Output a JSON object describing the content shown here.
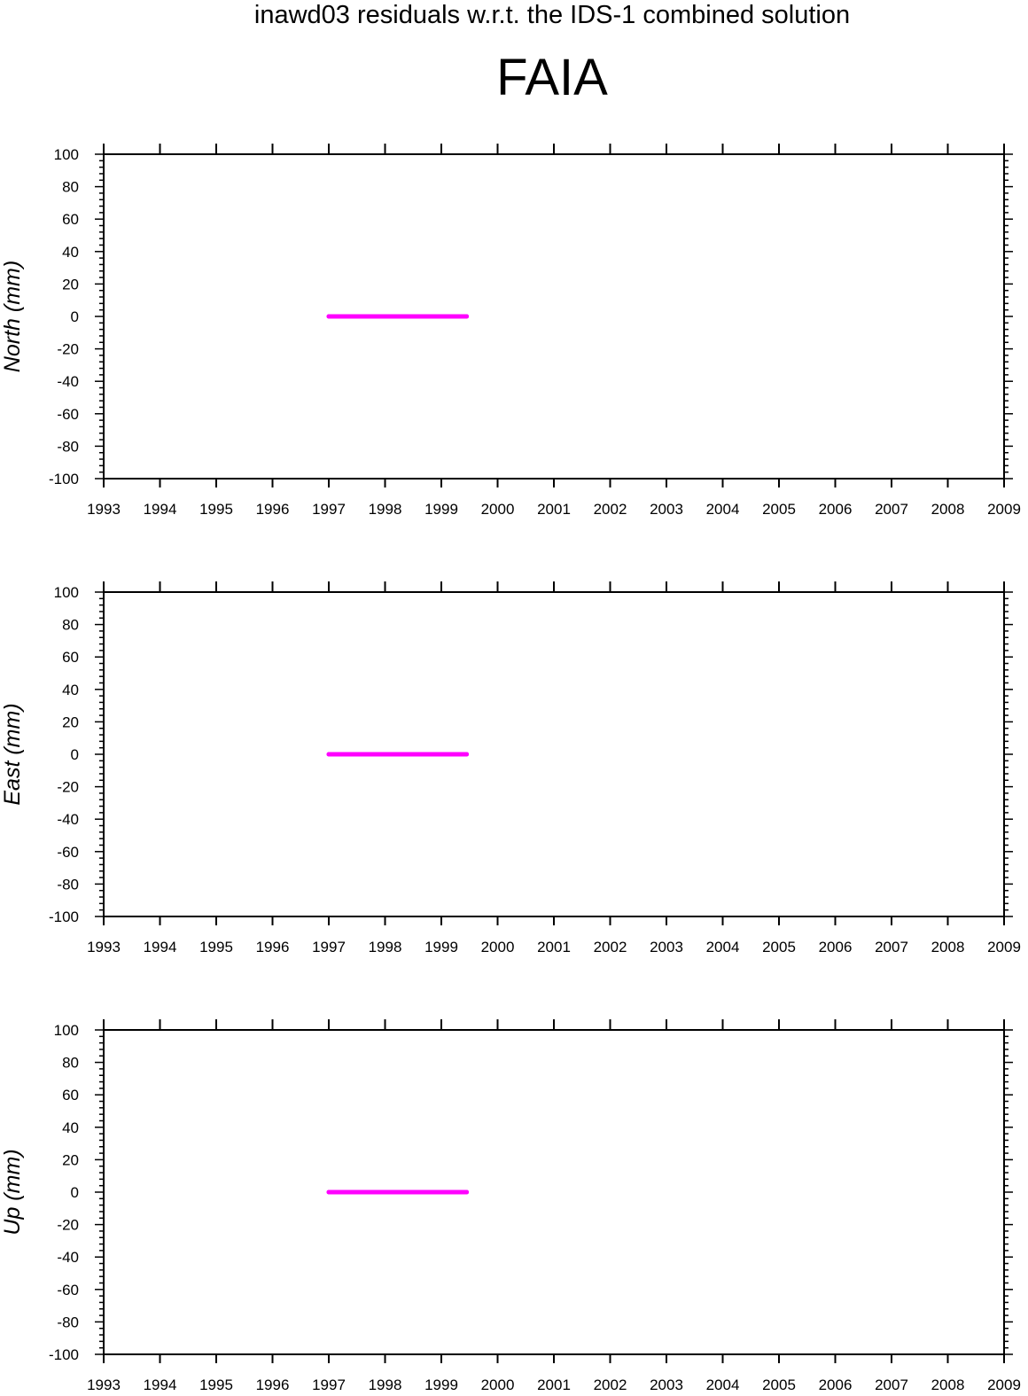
{
  "supertitle": "inawd03 residuals w.r.t. the IDS-1 combined solution",
  "title": "FAIA",
  "colors": {
    "series": "#ff00ff",
    "axis": "#000000",
    "background": "#ffffff"
  },
  "chart_data": [
    {
      "type": "scatter",
      "ylabel": "North (mm)",
      "xlim": [
        1993,
        2009
      ],
      "ylim": [
        -100,
        100
      ],
      "x_ticks": [
        "1993",
        "1994",
        "1995",
        "1996",
        "1997",
        "1998",
        "1999",
        "2000",
        "2001",
        "2002",
        "2003",
        "2004",
        "2005",
        "2006",
        "2007",
        "2008",
        "2009"
      ],
      "y_ticks": [
        "100",
        "80",
        "60",
        "40",
        "20",
        "0",
        "-20",
        "-40",
        "-60",
        "-80",
        "-100"
      ],
      "grid": false,
      "series": [
        {
          "x": [
            1997.0,
            1997.5,
            1998.0,
            1998.5,
            1999.0,
            1999.45
          ],
          "y": [
            0,
            0,
            0,
            0,
            0,
            0
          ]
        }
      ]
    },
    {
      "type": "scatter",
      "ylabel": "East (mm)",
      "xlim": [
        1993,
        2009
      ],
      "ylim": [
        -100,
        100
      ],
      "x_ticks": [
        "1993",
        "1994",
        "1995",
        "1996",
        "1997",
        "1998",
        "1999",
        "2000",
        "2001",
        "2002",
        "2003",
        "2004",
        "2005",
        "2006",
        "2007",
        "2008",
        "2009"
      ],
      "y_ticks": [
        "100",
        "80",
        "60",
        "40",
        "20",
        "0",
        "-20",
        "-40",
        "-60",
        "-80",
        "-100"
      ],
      "grid": false,
      "series": [
        {
          "x": [
            1997.0,
            1997.5,
            1998.0,
            1998.5,
            1999.0,
            1999.45
          ],
          "y": [
            0,
            0,
            0,
            0,
            0,
            0
          ]
        }
      ]
    },
    {
      "type": "scatter",
      "ylabel": "Up (mm)",
      "xlim": [
        1993,
        2009
      ],
      "ylim": [
        -100,
        100
      ],
      "x_ticks": [
        "1993",
        "1994",
        "1995",
        "1996",
        "1997",
        "1998",
        "1999",
        "2000",
        "2001",
        "2002",
        "2003",
        "2004",
        "2005",
        "2006",
        "2007",
        "2008",
        "2009"
      ],
      "y_ticks": [
        "100",
        "80",
        "60",
        "40",
        "20",
        "0",
        "-20",
        "-40",
        "-60",
        "-80",
        "-100"
      ],
      "grid": false,
      "series": [
        {
          "x": [
            1997.0,
            1997.5,
            1998.0,
            1998.5,
            1999.0,
            1999.45
          ],
          "y": [
            0,
            0,
            0,
            0,
            0,
            0
          ]
        }
      ]
    }
  ]
}
